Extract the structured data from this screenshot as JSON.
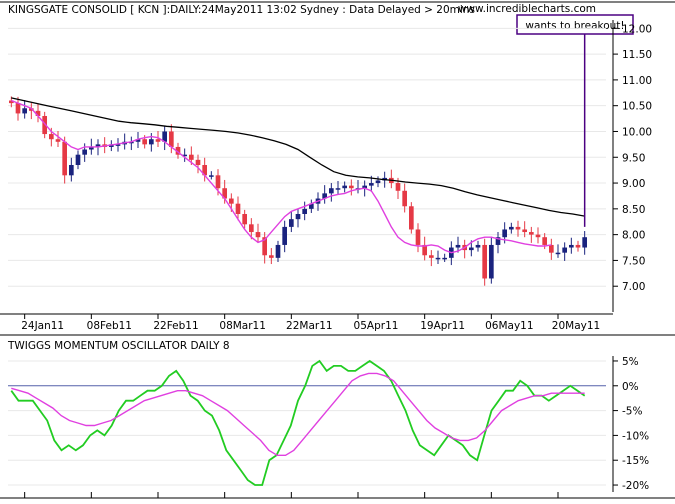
{
  "header": {
    "title": "KINGSGATE CONSOLID [ KCN ]:DAILY:24May2011 13:02 Sydney : Data Delayed > 20mins",
    "website": "www.incrediblecharts.com",
    "annotation": "wants to breakout!"
  },
  "colors": {
    "up_candle": "#1a237e",
    "down_candle": "#e53945",
    "ma_fast": "#e040e0",
    "ma_slow": "#000000",
    "oscillator": "#22cc22",
    "signal": "#e040e0",
    "annotation_border": "#4b0082",
    "panel_bg": "#ffffff"
  },
  "chart_data": [
    {
      "type": "candlestick",
      "title": "KINGSGATE CONSOLID [ KCN ]:DAILY:24May2011 13:02 Sydney : Data Delayed > 20mins",
      "ylim": [
        6.5,
        12.2
      ],
      "yticks": [
        "7.00",
        "7.50",
        "8.00",
        "8.50",
        "9.00",
        "9.50",
        "10.00",
        "10.50",
        "11.00",
        "11.50",
        "12.00"
      ],
      "xticks": [
        "24Jan11",
        "08Feb11",
        "22Feb11",
        "08Mar11",
        "22Mar11",
        "05Apr11",
        "19Apr11",
        "06May11",
        "20May11"
      ],
      "series_close": [
        10.55,
        10.35,
        10.45,
        10.4,
        10.3,
        9.95,
        9.85,
        9.8,
        9.15,
        9.35,
        9.55,
        9.65,
        9.7,
        9.75,
        9.7,
        9.75,
        9.75,
        9.8,
        9.8,
        9.85,
        9.75,
        9.85,
        9.8,
        10.0,
        9.7,
        9.55,
        9.55,
        9.45,
        9.35,
        9.15,
        9.15,
        8.9,
        8.7,
        8.6,
        8.4,
        8.2,
        8.05,
        7.95,
        7.6,
        7.55,
        7.8,
        8.15,
        8.3,
        8.4,
        8.5,
        8.6,
        8.7,
        8.8,
        8.9,
        8.9,
        8.95,
        8.9,
        8.9,
        8.95,
        9.0,
        9.05,
        9.1,
        9.0,
        8.85,
        8.55,
        8.1,
        7.8,
        7.6,
        7.55,
        7.55,
        7.55,
        7.75,
        7.8,
        7.7,
        7.75,
        7.8,
        7.15,
        7.8,
        7.95,
        8.1,
        8.15,
        8.1,
        8.05,
        8.0,
        7.95,
        7.8,
        7.65,
        7.65,
        7.75,
        7.8,
        7.75,
        7.95
      ],
      "series": [
        {
          "name": "",
          "values": [
            10.6,
            10.55,
            10.5,
            10.45,
            10.3,
            10.15,
            10.0,
            9.9,
            9.8,
            9.7,
            9.65,
            9.7,
            9.7,
            9.7,
            9.72,
            9.74,
            9.76,
            9.78,
            9.8,
            9.85,
            9.88,
            9.9,
            9.88,
            9.8,
            9.7,
            9.6,
            9.5,
            9.4,
            9.3,
            9.15,
            9.0,
            8.85,
            8.7,
            8.5,
            8.3,
            8.1,
            7.95,
            7.85,
            7.9,
            8.05,
            8.2,
            8.35,
            8.45,
            8.5,
            8.55,
            8.6,
            8.65,
            8.7,
            8.75,
            8.78,
            8.8,
            8.85,
            8.88,
            8.9,
            8.85,
            8.65,
            8.4,
            8.15,
            7.95,
            7.85,
            7.8,
            7.78,
            7.78,
            7.8,
            7.78,
            7.7,
            7.65,
            7.68,
            7.75,
            7.85,
            7.92,
            7.95,
            7.95,
            7.92,
            7.9,
            7.88,
            7.85,
            7.82,
            7.8,
            7.78,
            7.78,
            7.8
          ]
        },
        {
          "name": "",
          "values": [
            10.65,
            10.6,
            10.55,
            10.5,
            10.45,
            10.4,
            10.35,
            10.3,
            10.25,
            10.2,
            10.17,
            10.15,
            10.13,
            10.1,
            10.08,
            10.06,
            10.04,
            10.02,
            10.0,
            9.97,
            9.93,
            9.88,
            9.82,
            9.75,
            9.65,
            9.5,
            9.35,
            9.22,
            9.15,
            9.12,
            9.1,
            9.07,
            9.05,
            9.02,
            9.0,
            8.98,
            8.95,
            8.9,
            8.83,
            8.77,
            8.72,
            8.67,
            8.62,
            8.57,
            8.52,
            8.47,
            8.43,
            8.4,
            8.36
          ]
        }
      ]
    },
    {
      "type": "line",
      "title": "TWIGGS MOMENTUM OSCILLATOR DAILY 8",
      "ylim": [
        -21,
        6
      ],
      "yticks": [
        "5%",
        "0%",
        "-5%",
        "-10%",
        "-15%",
        "-20%"
      ],
      "series": [
        {
          "name": "",
          "values": [
            -1,
            -3,
            -3,
            -3,
            -5,
            -7,
            -11,
            -13,
            -12,
            -13,
            -12,
            -10,
            -9,
            -10,
            -8,
            -5,
            -3,
            -3,
            -2,
            -1,
            -1,
            0,
            2,
            3,
            1,
            -2,
            -3,
            -5,
            -6,
            -9,
            -13,
            -15,
            -17,
            -19,
            -20,
            -20,
            -15,
            -14,
            -11,
            -8,
            -3,
            0,
            4,
            5,
            3,
            4,
            4,
            3,
            3,
            4,
            5,
            4,
            3,
            1,
            -2,
            -5,
            -9,
            -12,
            -13,
            -14,
            -12,
            -10,
            -11,
            -12,
            -14,
            -15,
            -10,
            -5,
            -3,
            -1,
            -1,
            1,
            0,
            -2,
            -2,
            -3,
            -2,
            -1,
            0,
            -1,
            -2
          ]
        },
        {
          "name": "",
          "values": [
            -0.5,
            -1,
            -1.5,
            -2.5,
            -3.5,
            -4.5,
            -6,
            -7,
            -7.5,
            -8,
            -8,
            -7.5,
            -7,
            -6,
            -5,
            -4,
            -3,
            -2.5,
            -2,
            -1.5,
            -1,
            -1,
            -1.5,
            -2,
            -3,
            -4,
            -5,
            -6.5,
            -8,
            -9.5,
            -11,
            -13,
            -14,
            -14,
            -13,
            -11,
            -9,
            -7,
            -5,
            -3,
            -1,
            1,
            2,
            2.5,
            2.5,
            2,
            1,
            -1,
            -3,
            -5,
            -7,
            -8.5,
            -9.5,
            -10.5,
            -11,
            -11,
            -10.5,
            -9,
            -7,
            -5,
            -4,
            -3,
            -2.5,
            -2,
            -2,
            -1.5,
            -1.5,
            -1.5,
            -1.5,
            -1.5
          ]
        }
      ]
    }
  ]
}
